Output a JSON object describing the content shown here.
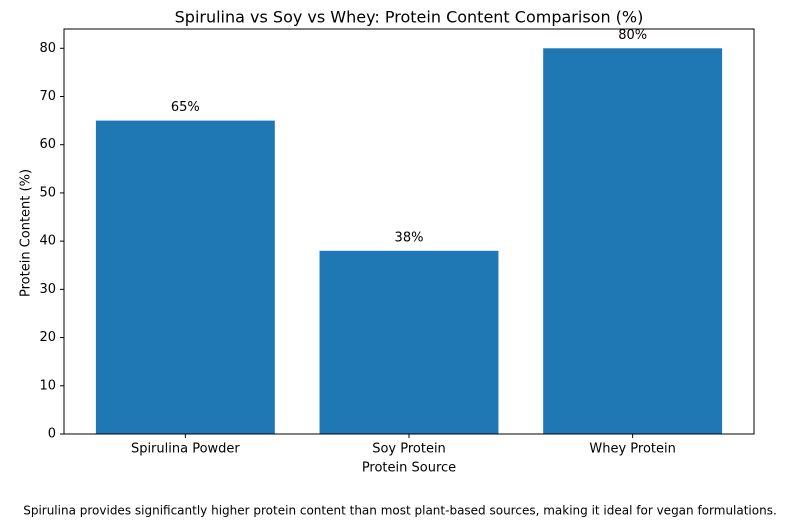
{
  "chart_data": {
    "type": "bar",
    "title": "Spirulina vs Soy vs Whey: Protein Content Comparison (%)",
    "x_label": "Protein Source",
    "y_label": "Protein Content (%)",
    "categories": [
      "Spirulina Powder",
      "Soy Protein",
      "Whey Protein"
    ],
    "values": [
      65,
      38,
      80
    ],
    "value_labels": [
      "65%",
      "38%",
      "80%"
    ],
    "color": "#1f77b4",
    "ylim": [
      0,
      84
    ],
    "yticks": [
      0,
      10,
      20,
      30,
      40,
      50,
      60,
      70,
      80
    ],
    "grid": false,
    "footnote": "Spirulina provides significantly higher protein content than most plant-based sources, making it ideal for vegan formulations."
  }
}
